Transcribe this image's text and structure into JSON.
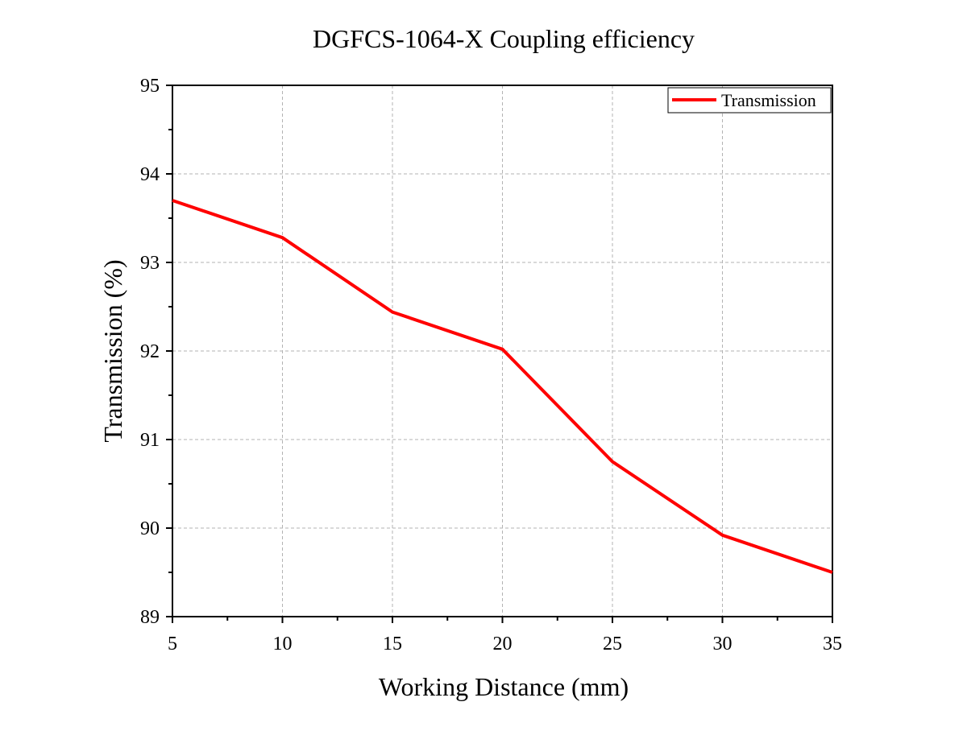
{
  "chart_data": {
    "type": "line",
    "title": "DGFCS-1064-X Coupling efficiency",
    "xlabel": "Working Distance (mm)",
    "ylabel": "Transmission (%)",
    "xlim": [
      5,
      35
    ],
    "ylim": [
      89,
      95
    ],
    "xticks": [
      5,
      10,
      15,
      20,
      25,
      30,
      35
    ],
    "yticks": [
      89,
      90,
      91,
      92,
      93,
      94,
      95
    ],
    "grid": true,
    "legend_position": "top-right",
    "series": [
      {
        "name": "Transmission",
        "color": "#ff0000",
        "x": [
          5,
          10,
          15,
          20,
          25,
          30,
          35
        ],
        "y": [
          93.7,
          93.28,
          92.44,
          92.02,
          90.75,
          89.92,
          89.5
        ]
      }
    ]
  }
}
